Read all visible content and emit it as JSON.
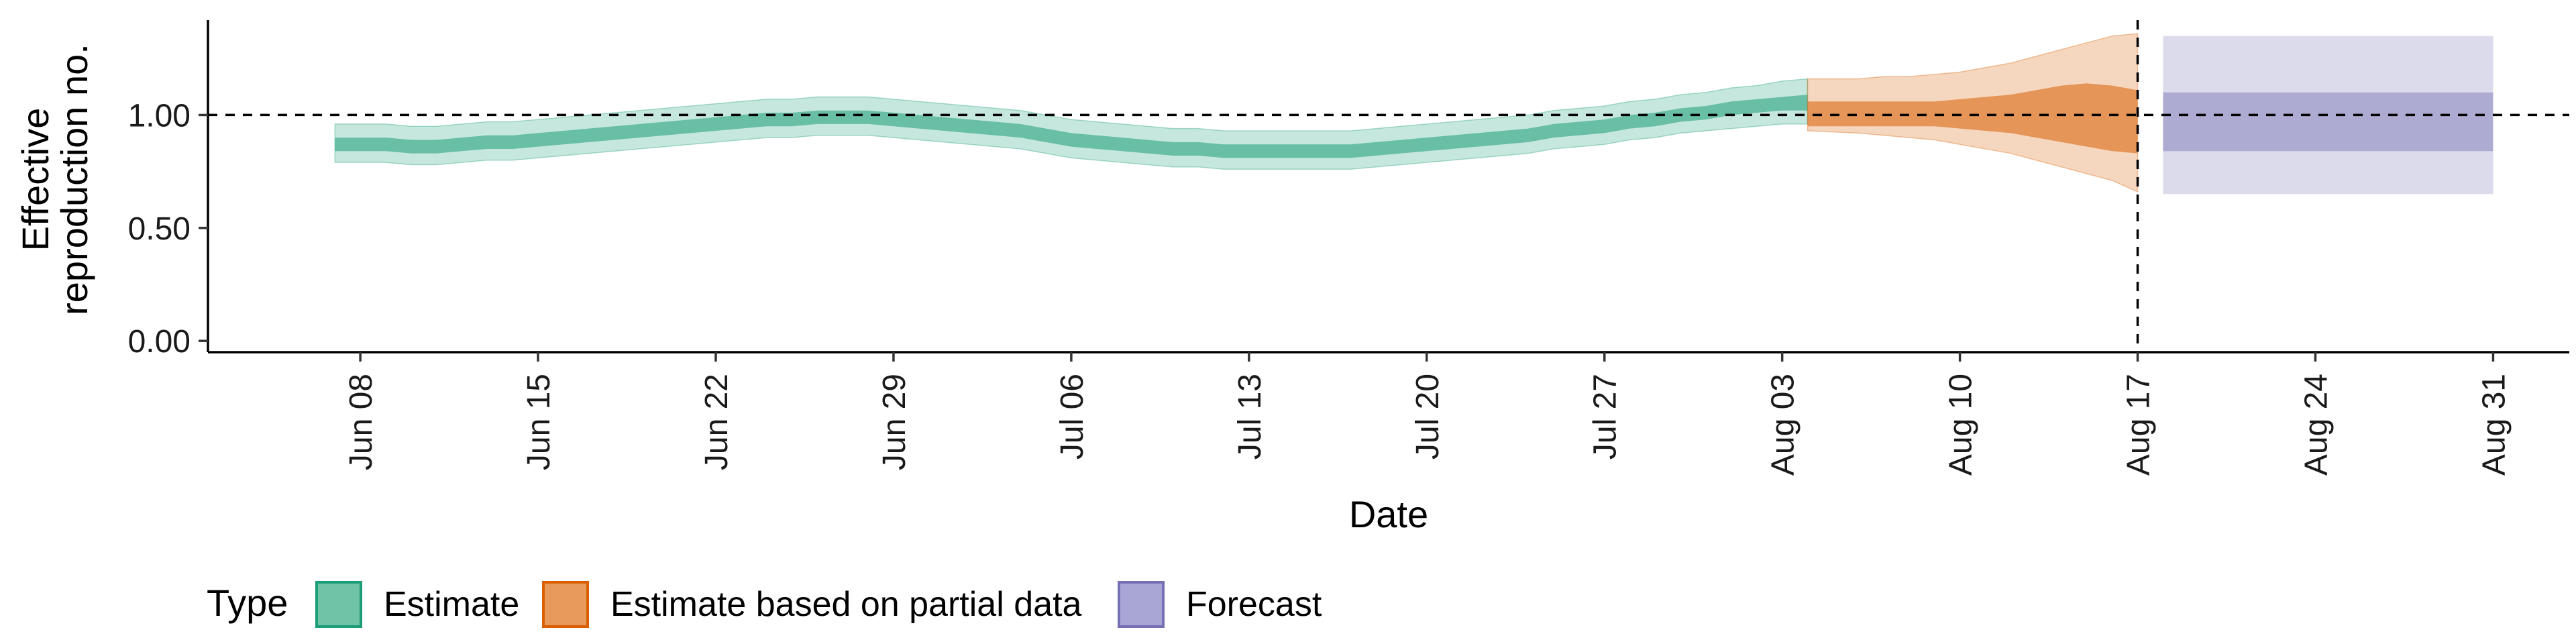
{
  "chart_data": {
    "type": "area",
    "xlabel": "Date",
    "ylabel_lines": [
      "Effective",
      "reproduction no."
    ],
    "ylim": [
      -0.05,
      1.42
    ],
    "xlim": [
      "2020-06-02",
      "2020-09-03"
    ],
    "y_ticks": [
      0.0,
      0.5,
      1.0
    ],
    "y_tick_labels": [
      "0.00",
      "0.50",
      "1.00"
    ],
    "x_ticks": [
      "2020-06-08",
      "2020-06-15",
      "2020-06-22",
      "2020-06-29",
      "2020-07-06",
      "2020-07-13",
      "2020-07-20",
      "2020-07-27",
      "2020-08-03",
      "2020-08-10",
      "2020-08-17",
      "2020-08-24",
      "2020-08-31"
    ],
    "x_tick_labels": [
      "Jun 08",
      "Jun 15",
      "Jun 22",
      "Jun 29",
      "Jul 06",
      "Jul 13",
      "Jul 20",
      "Jul 27",
      "Aug 03",
      "Aug 10",
      "Aug 17",
      "Aug 24",
      "Aug 31"
    ],
    "reference_line_y": 1.0,
    "vertical_line_date": "2020-08-17",
    "grid": false,
    "legend_position": "bottom-left",
    "legend_title": "Type",
    "series": [
      {
        "name": "Estimate",
        "color": "#1b9e77",
        "x": [
          "2020-06-08",
          "2020-06-09",
          "2020-06-10",
          "2020-06-11",
          "2020-06-12",
          "2020-06-13",
          "2020-06-14",
          "2020-06-15",
          "2020-06-16",
          "2020-06-17",
          "2020-06-18",
          "2020-06-19",
          "2020-06-20",
          "2020-06-21",
          "2020-06-22",
          "2020-06-23",
          "2020-06-24",
          "2020-06-25",
          "2020-06-26",
          "2020-06-27",
          "2020-06-28",
          "2020-06-29",
          "2020-06-30",
          "2020-07-01",
          "2020-07-02",
          "2020-07-03",
          "2020-07-04",
          "2020-07-05",
          "2020-07-06",
          "2020-07-07",
          "2020-07-08",
          "2020-07-09",
          "2020-07-10",
          "2020-07-11",
          "2020-07-12",
          "2020-07-13",
          "2020-07-14",
          "2020-07-15",
          "2020-07-16",
          "2020-07-17",
          "2020-07-18",
          "2020-07-19",
          "2020-07-20",
          "2020-07-21",
          "2020-07-22",
          "2020-07-23",
          "2020-07-24",
          "2020-07-25",
          "2020-07-26",
          "2020-07-27",
          "2020-07-28",
          "2020-07-29",
          "2020-07-30",
          "2020-07-31",
          "2020-08-01",
          "2020-08-02",
          "2020-08-03",
          "2020-08-04"
        ],
        "median": [
          0.87,
          0.87,
          0.86,
          0.86,
          0.87,
          0.88,
          0.88,
          0.89,
          0.9,
          0.91,
          0.92,
          0.93,
          0.94,
          0.95,
          0.96,
          0.97,
          0.98,
          0.98,
          0.99,
          0.99,
          0.99,
          0.98,
          0.97,
          0.96,
          0.95,
          0.94,
          0.93,
          0.91,
          0.89,
          0.88,
          0.87,
          0.86,
          0.85,
          0.85,
          0.84,
          0.84,
          0.84,
          0.84,
          0.84,
          0.84,
          0.85,
          0.86,
          0.87,
          0.88,
          0.89,
          0.9,
          0.91,
          0.93,
          0.94,
          0.95,
          0.97,
          0.98,
          1.0,
          1.01,
          1.03,
          1.04,
          1.05,
          1.06
        ],
        "lower_50": [
          0.84,
          0.84,
          0.83,
          0.83,
          0.84,
          0.85,
          0.85,
          0.86,
          0.87,
          0.88,
          0.89,
          0.9,
          0.91,
          0.92,
          0.93,
          0.94,
          0.95,
          0.95,
          0.96,
          0.96,
          0.96,
          0.95,
          0.94,
          0.93,
          0.92,
          0.91,
          0.9,
          0.88,
          0.86,
          0.85,
          0.84,
          0.83,
          0.82,
          0.82,
          0.81,
          0.81,
          0.81,
          0.81,
          0.81,
          0.81,
          0.82,
          0.83,
          0.84,
          0.85,
          0.86,
          0.87,
          0.88,
          0.9,
          0.91,
          0.92,
          0.94,
          0.95,
          0.97,
          0.98,
          1.0,
          1.01,
          1.02,
          1.02
        ],
        "upper_50": [
          0.9,
          0.9,
          0.89,
          0.89,
          0.9,
          0.91,
          0.91,
          0.92,
          0.93,
          0.94,
          0.95,
          0.96,
          0.97,
          0.98,
          0.99,
          1.0,
          1.01,
          1.01,
          1.02,
          1.02,
          1.02,
          1.01,
          1.0,
          0.99,
          0.98,
          0.97,
          0.96,
          0.94,
          0.92,
          0.91,
          0.9,
          0.89,
          0.88,
          0.88,
          0.87,
          0.87,
          0.87,
          0.87,
          0.87,
          0.87,
          0.88,
          0.89,
          0.9,
          0.91,
          0.92,
          0.93,
          0.94,
          0.96,
          0.97,
          0.98,
          1.0,
          1.01,
          1.03,
          1.04,
          1.06,
          1.07,
          1.08,
          1.09
        ],
        "lower_90": [
          0.79,
          0.79,
          0.78,
          0.78,
          0.79,
          0.8,
          0.8,
          0.81,
          0.82,
          0.83,
          0.84,
          0.85,
          0.86,
          0.87,
          0.88,
          0.89,
          0.9,
          0.9,
          0.91,
          0.91,
          0.91,
          0.9,
          0.89,
          0.88,
          0.87,
          0.86,
          0.85,
          0.83,
          0.81,
          0.8,
          0.79,
          0.78,
          0.77,
          0.77,
          0.76,
          0.76,
          0.76,
          0.76,
          0.76,
          0.76,
          0.77,
          0.78,
          0.79,
          0.8,
          0.81,
          0.82,
          0.83,
          0.85,
          0.86,
          0.87,
          0.89,
          0.9,
          0.92,
          0.93,
          0.94,
          0.95,
          0.96,
          0.96
        ],
        "upper_90": [
          0.96,
          0.96,
          0.95,
          0.95,
          0.96,
          0.97,
          0.97,
          0.98,
          0.99,
          1.0,
          1.01,
          1.02,
          1.03,
          1.04,
          1.05,
          1.06,
          1.07,
          1.07,
          1.08,
          1.08,
          1.08,
          1.07,
          1.06,
          1.05,
          1.04,
          1.03,
          1.02,
          1.0,
          0.98,
          0.97,
          0.96,
          0.95,
          0.94,
          0.94,
          0.93,
          0.93,
          0.93,
          0.93,
          0.93,
          0.93,
          0.94,
          0.95,
          0.96,
          0.97,
          0.98,
          0.99,
          1.0,
          1.02,
          1.03,
          1.04,
          1.06,
          1.07,
          1.09,
          1.1,
          1.12,
          1.13,
          1.15,
          1.16
        ]
      },
      {
        "name": "Estimate based on partial data",
        "color": "#d95f02",
        "x": [
          "2020-08-05",
          "2020-08-06",
          "2020-08-07",
          "2020-08-08",
          "2020-08-09",
          "2020-08-10",
          "2020-08-11",
          "2020-08-12",
          "2020-08-13",
          "2020-08-14",
          "2020-08-15",
          "2020-08-16",
          "2020-08-17"
        ],
        "median": [
          1.0,
          1.0,
          1.0,
          1.0,
          1.0,
          1.0,
          1.0,
          1.0,
          1.0,
          1.0,
          1.0,
          1.0,
          1.0
        ],
        "lower_50": [
          0.95,
          0.95,
          0.95,
          0.95,
          0.95,
          0.94,
          0.93,
          0.92,
          0.9,
          0.88,
          0.86,
          0.84,
          0.83
        ],
        "upper_50": [
          1.06,
          1.06,
          1.06,
          1.06,
          1.06,
          1.07,
          1.08,
          1.09,
          1.11,
          1.13,
          1.14,
          1.13,
          1.11
        ],
        "lower_90": [
          0.93,
          0.92,
          0.91,
          0.9,
          0.89,
          0.87,
          0.85,
          0.83,
          0.8,
          0.77,
          0.74,
          0.71,
          0.66
        ],
        "upper_90": [
          1.16,
          1.16,
          1.17,
          1.17,
          1.18,
          1.19,
          1.21,
          1.23,
          1.26,
          1.29,
          1.32,
          1.35,
          1.36
        ]
      },
      {
        "name": "Forecast",
        "color": "#7570b3",
        "x": [
          "2020-08-18",
          "2020-08-31"
        ],
        "median": [
          0.97,
          0.97
        ],
        "lower_50": [
          0.84,
          0.84
        ],
        "upper_50": [
          1.1,
          1.1
        ],
        "lower_90": [
          0.65,
          0.65
        ],
        "upper_90": [
          1.35,
          1.35
        ]
      }
    ]
  },
  "legend": {
    "title": "Type",
    "items": [
      {
        "label": "Estimate",
        "fill": "#71c3a8",
        "border": "#1b9e77"
      },
      {
        "label": "Estimate based on partial data",
        "fill": "#e89a5d",
        "border": "#d95f02"
      },
      {
        "label": "Forecast",
        "fill": "#a9a6d6",
        "border": "#7570b3"
      }
    ]
  }
}
